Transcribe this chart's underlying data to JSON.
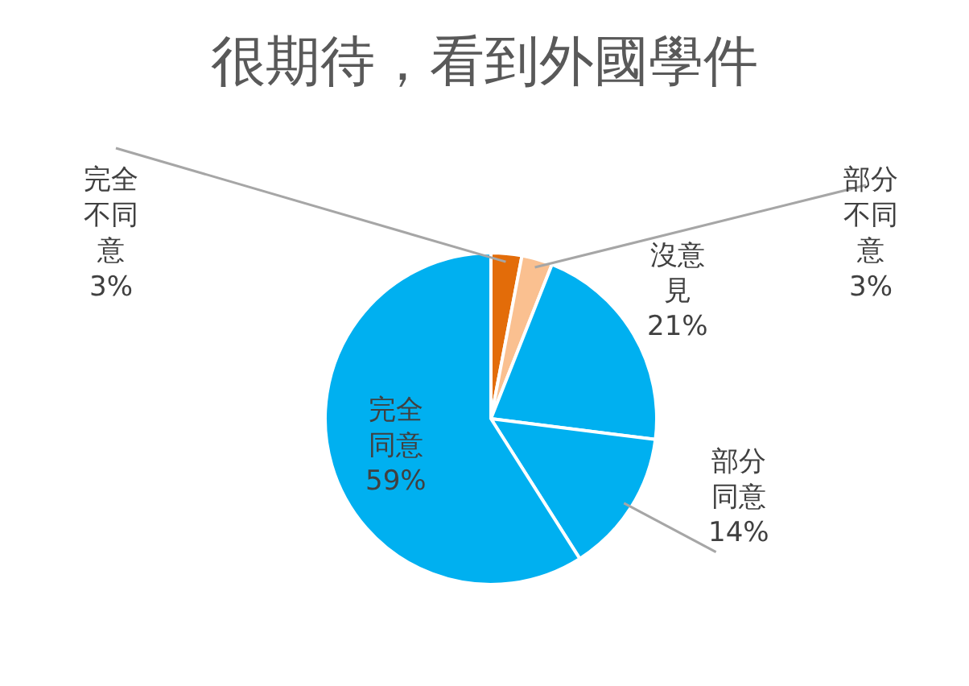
{
  "chart_data": {
    "type": "pie",
    "title": "很期待，看到外國學件",
    "categories": [
      "完全不同意",
      "部分不同意",
      "沒意見",
      "部分同意",
      "完全同意"
    ],
    "values": [
      3,
      3,
      21,
      14,
      59
    ],
    "value_labels": [
      "3%",
      "3%",
      "21%",
      "14%",
      "59%"
    ],
    "colors": [
      "#e36c09",
      "#fac090",
      "#00b0f0",
      "#00b0f0",
      "#00b0f0"
    ]
  }
}
